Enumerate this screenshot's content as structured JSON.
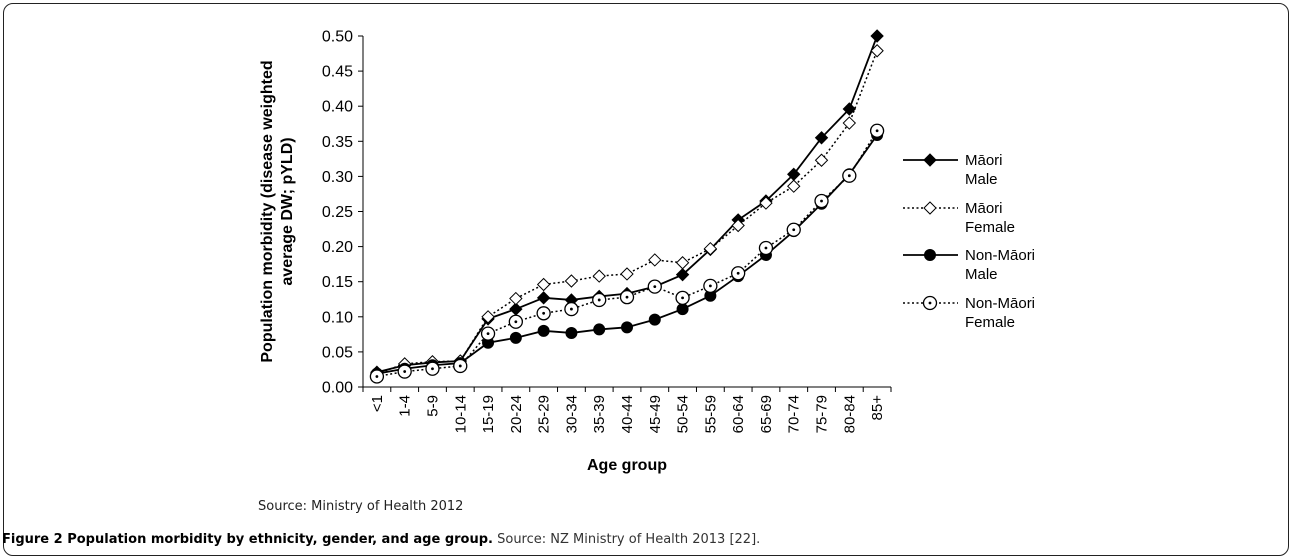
{
  "chart_data": {
    "type": "line",
    "xlabel": "Age group",
    "ylabel_line1": "Population morbidity (disease weighted",
    "ylabel_line2": "average DW; pYLD)",
    "ylim": [
      0,
      0.5
    ],
    "yticks": [
      "0.00",
      "0.05",
      "0.10",
      "0.15",
      "0.20",
      "0.25",
      "0.30",
      "0.35",
      "0.40",
      "0.45",
      "0.50"
    ],
    "categories": [
      "<1",
      "1-4",
      "5-9",
      "10-14",
      "15-19",
      "20-24",
      "25-29",
      "30-34",
      "35-39",
      "40-44",
      "45-49",
      "50-54",
      "55-59",
      "60-64",
      "65-69",
      "70-74",
      "75-79",
      "80-84",
      "85+"
    ],
    "legend_position": "right",
    "series": [
      {
        "name_line1": "Māori",
        "name_line2": "Male",
        "line": "solid",
        "marker": "diamond-filled",
        "values": [
          0.021,
          0.031,
          0.035,
          0.037,
          0.097,
          0.111,
          0.127,
          0.124,
          0.129,
          0.133,
          0.143,
          0.16,
          0.196,
          0.238,
          0.265,
          0.303,
          0.355,
          0.396,
          0.5
        ]
      },
      {
        "name_line1": "Māori",
        "name_line2": "Female",
        "line": "dotted",
        "marker": "diamond-open",
        "values": [
          0.019,
          0.033,
          0.036,
          0.037,
          0.1,
          0.126,
          0.146,
          0.151,
          0.158,
          0.161,
          0.181,
          0.177,
          0.197,
          0.23,
          0.262,
          0.286,
          0.323,
          0.376,
          0.479
        ]
      },
      {
        "name_line1": "Non-Māori",
        "name_line2": "Male",
        "line": "solid",
        "marker": "circle-filled",
        "values": [
          0.019,
          0.026,
          0.031,
          0.034,
          0.063,
          0.07,
          0.08,
          0.077,
          0.082,
          0.085,
          0.096,
          0.111,
          0.13,
          0.158,
          0.188,
          0.222,
          0.261,
          0.303,
          0.359
        ]
      },
      {
        "name_line1": "Non-Māori",
        "name_line2": "Female",
        "line": "dotted",
        "marker": "circle-open",
        "values": [
          0.015,
          0.022,
          0.026,
          0.03,
          0.076,
          0.093,
          0.105,
          0.111,
          0.124,
          0.128,
          0.143,
          0.127,
          0.144,
          0.162,
          0.198,
          0.224,
          0.265,
          0.301,
          0.365
        ]
      }
    ]
  },
  "source_note": "Source: Ministry of Health 2012",
  "caption": {
    "bold": "Figure 2 Population morbidity by ethnicity, gender, and age group.",
    "rest": " Source: NZ Ministry of Health 2013 [22]."
  }
}
